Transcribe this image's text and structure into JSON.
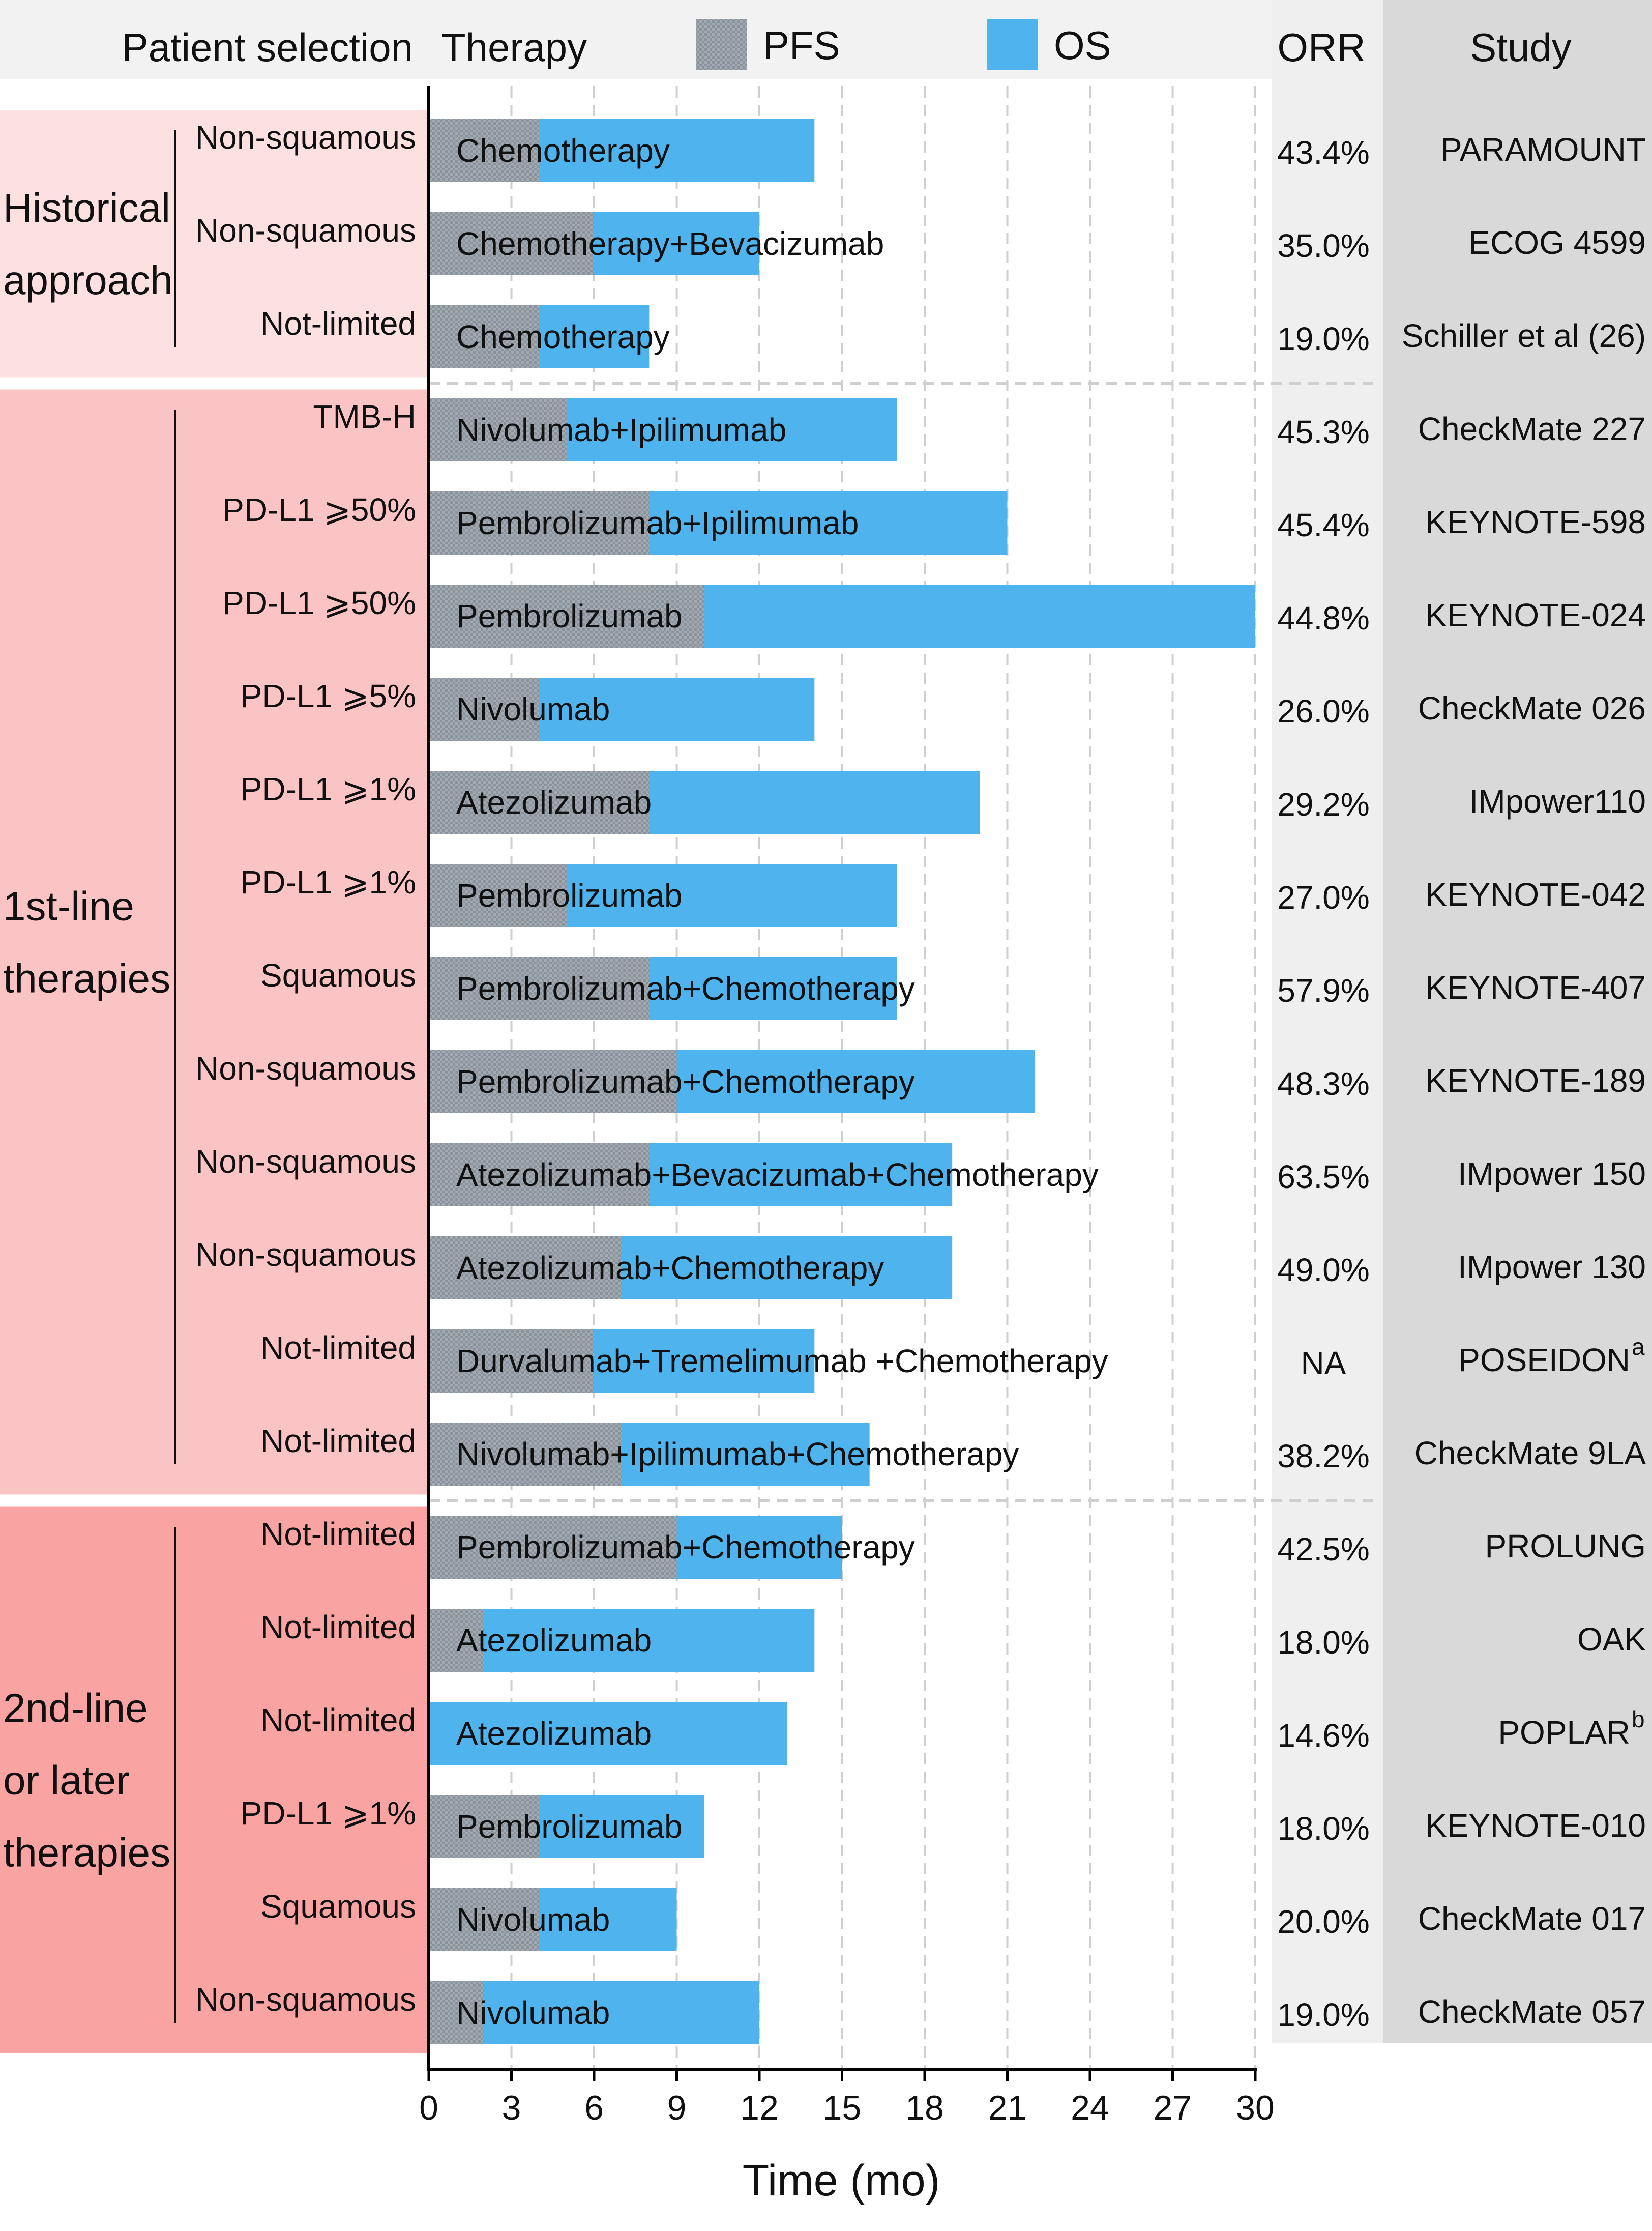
{
  "chart_data": {
    "type": "bar",
    "orientation": "horizontal",
    "stacking": "overlay",
    "title": "",
    "xlabel": "Time (mo)",
    "xlim": [
      0,
      30
    ],
    "xticks": [
      0,
      3,
      6,
      9,
      12,
      15,
      18,
      21,
      24,
      27,
      30
    ],
    "legend": [
      {
        "name": "PFS",
        "color": "#9aa4ad",
        "pattern": "checkered"
      },
      {
        "name": "OS",
        "color": "#4fb3ee"
      }
    ],
    "column_headers": {
      "selection": "Patient selection",
      "therapy": "Therapy",
      "orr": "ORR",
      "study": "Study"
    },
    "groups": [
      {
        "label_lines": [
          "Historical",
          "approach"
        ],
        "color": "#fde0e0",
        "rows": [
          0,
          2
        ]
      },
      {
        "label_lines": [
          "1st-line",
          "therapies"
        ],
        "color": "#fbc4c4",
        "rows": [
          3,
          14
        ]
      },
      {
        "label_lines": [
          "2nd-line",
          "or later",
          "therapies"
        ],
        "color": "#f9a3a3",
        "rows": [
          15,
          20
        ]
      }
    ],
    "rows": [
      {
        "selection": "Non-squamous",
        "therapy": "Chemotherapy",
        "pfs": 4,
        "os": 14,
        "orr": "43.4%",
        "study": "PARAMOUNT",
        "sup": ""
      },
      {
        "selection": "Non-squamous",
        "therapy": "Chemotherapy+Bevacizumab",
        "pfs": 6,
        "os": 12,
        "orr": "35.0%",
        "study": "ECOG 4599",
        "sup": ""
      },
      {
        "selection": "Not-limited",
        "therapy": "Chemotherapy",
        "pfs": 4,
        "os": 8,
        "orr": "19.0%",
        "study": "Schiller et al (26)",
        "sup": ""
      },
      {
        "selection": "TMB-H",
        "therapy": "Nivolumab+Ipilimumab",
        "pfs": 5,
        "os": 17,
        "orr": "45.3%",
        "study": "CheckMate 227",
        "sup": ""
      },
      {
        "selection": "PD-L1 ⩾50%",
        "therapy": "Pembrolizumab+Ipilimumab",
        "pfs": 8,
        "os": 21,
        "orr": "45.4%",
        "study": "KEYNOTE-598",
        "sup": ""
      },
      {
        "selection": "PD-L1 ⩾50%",
        "therapy": "Pembrolizumab",
        "pfs": 10,
        "os": 30,
        "orr": "44.8%",
        "study": "KEYNOTE-024",
        "sup": ""
      },
      {
        "selection": "PD-L1 ⩾5%",
        "therapy": "Nivolumab",
        "pfs": 4,
        "os": 14,
        "orr": "26.0%",
        "study": "CheckMate 026",
        "sup": ""
      },
      {
        "selection": "PD-L1 ⩾1%",
        "therapy": "Atezolizumab",
        "pfs": 8,
        "os": 20,
        "orr": "29.2%",
        "study": "IMpower110",
        "sup": ""
      },
      {
        "selection": "PD-L1 ⩾1%",
        "therapy": "Pembrolizumab",
        "pfs": 5,
        "os": 17,
        "orr": "27.0%",
        "study": "KEYNOTE-042",
        "sup": ""
      },
      {
        "selection": "Squamous",
        "therapy": "Pembrolizumab+Chemotherapy",
        "pfs": 8,
        "os": 17,
        "orr": "57.9%",
        "study": "KEYNOTE-407",
        "sup": ""
      },
      {
        "selection": "Non-squamous",
        "therapy": "Pembrolizumab+Chemotherapy",
        "pfs": 9,
        "os": 22,
        "orr": "48.3%",
        "study": "KEYNOTE-189",
        "sup": ""
      },
      {
        "selection": "Non-squamous",
        "therapy": "Atezolizumab+Bevacizumab+Chemotherapy",
        "pfs": 8,
        "os": 19,
        "orr": "63.5%",
        "study": "IMpower 150",
        "sup": ""
      },
      {
        "selection": "Non-squamous",
        "therapy": "Atezolizumab+Chemotherapy",
        "pfs": 7,
        "os": 19,
        "orr": "49.0%",
        "study": "IMpower 130",
        "sup": ""
      },
      {
        "selection": "Not-limited",
        "therapy": "Durvalumab+Tremelimumab +Chemotherapy",
        "pfs": 6,
        "os": 14,
        "orr": "NA",
        "study": "POSEIDON",
        "sup": "a"
      },
      {
        "selection": "Not-limited",
        "therapy": "Nivolumab+Ipilimumab+Chemotherapy",
        "pfs": 7,
        "os": 16,
        "orr": "38.2%",
        "study": "CheckMate 9LA",
        "sup": ""
      },
      {
        "selection": "Not-limited",
        "therapy": "Pembrolizumab+Chemotherapy",
        "pfs": 9,
        "os": 15,
        "orr": "42.5%",
        "study": "PROLUNG",
        "sup": ""
      },
      {
        "selection": "Not-limited",
        "therapy": "Atezolizumab",
        "pfs": 2,
        "os": 14,
        "orr": "18.0%",
        "study": "OAK",
        "sup": ""
      },
      {
        "selection": "Not-limited",
        "therapy": "Atezolizumab",
        "pfs": 0,
        "os": 13,
        "orr": "14.6%",
        "study": "POPLAR",
        "sup": "b"
      },
      {
        "selection": "PD-L1 ⩾1%",
        "therapy": "Pembrolizumab",
        "pfs": 4,
        "os": 10,
        "orr": "18.0%",
        "study": "KEYNOTE-010",
        "sup": ""
      },
      {
        "selection": "Squamous",
        "therapy": "Nivolumab",
        "pfs": 4,
        "os": 9,
        "orr": "20.0%",
        "study": "CheckMate 017",
        "sup": ""
      },
      {
        "selection": "Non-squamous",
        "therapy": "Nivolumab",
        "pfs": 2,
        "os": 12,
        "orr": "19.0%",
        "study": "CheckMate 057",
        "sup": ""
      }
    ]
  }
}
